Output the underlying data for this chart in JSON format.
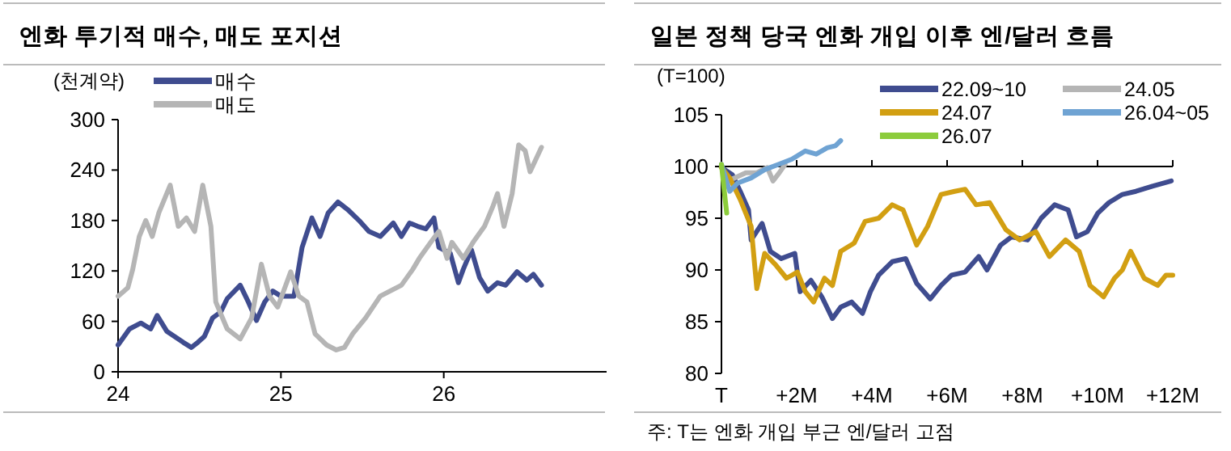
{
  "chart_data": [
    {
      "type": "line",
      "title": "엔화 투기적 매수, 매도 포지션",
      "ylabel": "(천계약)",
      "xlim": [
        24,
        27
      ],
      "xticks": [
        24,
        25,
        26
      ],
      "ylim": [
        0,
        300
      ],
      "yticks": [
        0,
        60,
        120,
        180,
        240,
        300
      ],
      "legend": "top left",
      "grid": false,
      "series": [
        {
          "name": "매수",
          "color": "#3f4c8f",
          "x": [
            24.0,
            24.07,
            24.14,
            24.2,
            24.24,
            24.3,
            24.4,
            24.45,
            24.49,
            24.53,
            24.58,
            24.63,
            24.67,
            24.75,
            24.8,
            24.85,
            24.9,
            24.95,
            25.0,
            25.08,
            25.13,
            25.19,
            25.24,
            25.29,
            25.35,
            25.41,
            25.48,
            25.54,
            25.61,
            25.69,
            25.74,
            25.79,
            25.84,
            25.89,
            25.94,
            25.97,
            26.04,
            26.09,
            26.12,
            26.17,
            26.22,
            26.27,
            26.33,
            26.38,
            26.45,
            26.51,
            26.55,
            26.6
          ],
          "values": [
            32,
            51,
            58,
            51,
            67,
            48,
            35,
            29,
            35,
            42,
            64,
            71,
            87,
            103,
            83,
            61,
            83,
            96,
            90,
            90,
            148,
            183,
            161,
            189,
            202,
            193,
            180,
            167,
            161,
            177,
            161,
            177,
            173,
            170,
            183,
            148,
            141,
            106,
            122,
            145,
            112,
            96,
            106,
            103,
            119,
            109,
            116,
            103
          ]
        },
        {
          "name": "매도",
          "color": "#b5b5b5",
          "x": [
            24.0,
            24.06,
            24.09,
            24.13,
            24.17,
            24.21,
            24.25,
            24.32,
            24.37,
            24.42,
            24.47,
            24.52,
            24.57,
            24.6,
            24.67,
            24.75,
            24.82,
            24.88,
            24.93,
            24.98,
            25.06,
            25.11,
            25.16,
            25.21,
            25.28,
            25.34,
            25.39,
            25.44,
            25.52,
            25.61,
            25.67,
            25.74,
            25.81,
            25.85,
            25.92,
            25.97,
            26.02,
            26.05,
            26.12,
            26.18,
            26.25,
            26.3,
            26.33,
            26.37,
            26.42,
            26.46,
            26.5,
            26.53,
            26.6
          ],
          "values": [
            90,
            100,
            122,
            161,
            180,
            161,
            189,
            222,
            173,
            183,
            167,
            222,
            173,
            83,
            51,
            39,
            64,
            128,
            90,
            77,
            119,
            90,
            83,
            45,
            32,
            26,
            29,
            45,
            64,
            90,
            96,
            103,
            122,
            135,
            154,
            167,
            135,
            154,
            135,
            154,
            173,
            196,
            212,
            173,
            212,
            270,
            263,
            238,
            267
          ]
        }
      ]
    },
    {
      "type": "line",
      "title": "일본 정책 당국 엔화 개입 이후 엔/달러 흐름",
      "ylabel": "(T=100)",
      "xlim": [
        0,
        12
      ],
      "xticks": [
        {
          "value": 0,
          "label": "T"
        },
        {
          "value": 2,
          "label": "+2M"
        },
        {
          "value": 4,
          "label": "+4M"
        },
        {
          "value": 6,
          "label": "+6M"
        },
        {
          "value": 8,
          "label": "+8M"
        },
        {
          "value": 10,
          "label": "+10M"
        },
        {
          "value": 12,
          "label": "+12M"
        }
      ],
      "ylim": [
        80,
        105
      ],
      "yticks": [
        80,
        85,
        90,
        95,
        100,
        105
      ],
      "legend": "top right",
      "grid": false,
      "ref_lines": [
        {
          "axis": "y",
          "value": 100,
          "color": "#000000"
        }
      ],
      "annotations": [
        "주: T는 엔화 개입 부근 엔/달러 고점"
      ],
      "series": [
        {
          "name": "22.09~10",
          "color": "#3f4c8f",
          "x": [
            0,
            0.29,
            0.5,
            0.72,
            0.79,
            1.08,
            1.3,
            1.59,
            1.95,
            2.09,
            2.38,
            2.67,
            2.95,
            3.17,
            3.46,
            3.75,
            3.96,
            4.18,
            4.54,
            4.9,
            5.19,
            5.55,
            5.84,
            6.12,
            6.48,
            6.84,
            7.06,
            7.42,
            7.71,
            8.14,
            8.5,
            8.86,
            9.22,
            9.44,
            9.73,
            10.01,
            10.3,
            10.66,
            11.02,
            11.46,
            11.96
          ],
          "values": [
            99.9,
            99.2,
            97.6,
            95.8,
            92.9,
            94.5,
            91.8,
            91.1,
            91.6,
            87.9,
            89.0,
            87.4,
            85.3,
            86.4,
            86.9,
            85.8,
            87.9,
            89.5,
            90.8,
            91.1,
            88.7,
            87.2,
            88.5,
            89.5,
            89.8,
            91.3,
            90.0,
            92.4,
            93.2,
            92.9,
            95.0,
            96.3,
            95.8,
            93.2,
            93.7,
            95.5,
            96.5,
            97.3,
            97.6,
            98.1,
            98.6
          ]
        },
        {
          "name": "24.05",
          "color": "#b5b5b5",
          "x": [
            0,
            0.14,
            0.36,
            0.65,
            0.94,
            1.22,
            1.37,
            1.54,
            1.69
          ],
          "values": [
            100.2,
            98.6,
            98.9,
            99.4,
            99.4,
            99.9,
            98.6,
            99.4,
            100.2
          ]
        },
        {
          "name": "24.07",
          "color": "#d29f12",
          "x": [
            0,
            0.22,
            0.5,
            0.79,
            0.94,
            1.15,
            1.44,
            1.73,
            2.02,
            2.23,
            2.45,
            2.74,
            2.95,
            3.17,
            3.53,
            3.82,
            4.18,
            4.54,
            4.83,
            5.19,
            5.48,
            5.84,
            6.2,
            6.48,
            6.77,
            7.13,
            7.56,
            7.93,
            8.36,
            8.72,
            9.15,
            9.51,
            9.8,
            10.16,
            10.45,
            10.66,
            10.88,
            11.24,
            11.6,
            11.82,
            12
          ],
          "values": [
            99.9,
            98.9,
            96.8,
            94.2,
            88.2,
            91.6,
            90.5,
            89.2,
            89.8,
            87.9,
            86.9,
            89.2,
            88.5,
            91.8,
            92.6,
            94.7,
            95.0,
            96.3,
            95.8,
            92.4,
            94.2,
            97.3,
            97.6,
            97.8,
            96.3,
            96.5,
            93.9,
            92.9,
            93.7,
            91.3,
            92.9,
            91.8,
            88.5,
            87.4,
            89.2,
            90.0,
            91.8,
            89.2,
            88.5,
            89.5,
            89.5
          ]
        },
        {
          "name": "26.04~05",
          "color": "#6fa3d3",
          "x": [
            0,
            0.22,
            0.43,
            0.79,
            1.15,
            1.51,
            1.87,
            2.23,
            2.52,
            2.81,
            3.03,
            3.17
          ],
          "values": [
            100.2,
            97.6,
            98.4,
            98.9,
            99.7,
            100.2,
            100.7,
            101.5,
            101.2,
            101.8,
            102.0,
            102.5
          ]
        },
        {
          "name": "26.07",
          "color": "#8ccc3c",
          "x": [
            0,
            0.07,
            0.14
          ],
          "values": [
            100.2,
            97.8,
            95.5
          ]
        }
      ]
    }
  ]
}
